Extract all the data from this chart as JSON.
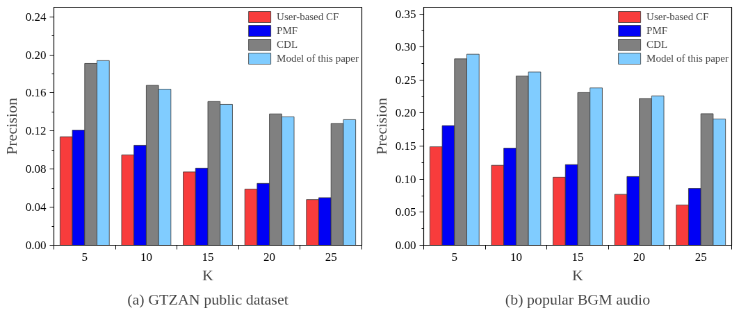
{
  "chart_data": [
    {
      "type": "bar",
      "title": "(a) GTZAN public dataset",
      "xlabel": "K",
      "ylabel": "Precision",
      "categories": [
        "5",
        "10",
        "15",
        "20",
        "25"
      ],
      "series": [
        {
          "name": "User-based CF",
          "color": "#f83c3c",
          "values": [
            0.114,
            0.095,
            0.077,
            0.059,
            0.048
          ]
        },
        {
          "name": "PMF",
          "color": "#0000f5",
          "values": [
            0.121,
            0.105,
            0.081,
            0.065,
            0.05
          ]
        },
        {
          "name": "CDL",
          "color": "#808080",
          "values": [
            0.191,
            0.168,
            0.151,
            0.138,
            0.128
          ]
        },
        {
          "name": "Model of this paper",
          "color": "#80ccff",
          "values": [
            0.194,
            0.164,
            0.148,
            0.135,
            0.132
          ]
        }
      ],
      "ylim": [
        0,
        0.25
      ],
      "yticks": [
        {
          "value": 0,
          "label": "0.00"
        },
        {
          "value": 0.04,
          "label": "0.04"
        },
        {
          "value": 0.08,
          "label": "0.08"
        },
        {
          "value": 0.12,
          "label": "0.12"
        },
        {
          "value": 0.16,
          "label": "0.16"
        },
        {
          "value": 0.2,
          "label": "0.20"
        },
        {
          "value": 0.24,
          "label": "0.24"
        }
      ],
      "legend": "top right",
      "grid": false
    },
    {
      "type": "bar",
      "title": "(b) popular BGM audio",
      "xlabel": "K",
      "ylabel": "Precision",
      "categories": [
        "5",
        "10",
        "15",
        "20",
        "25"
      ],
      "series": [
        {
          "name": "User-based CF",
          "color": "#f83c3c",
          "values": [
            0.149,
            0.121,
            0.103,
            0.077,
            0.061
          ]
        },
        {
          "name": "PMF",
          "color": "#0000f5",
          "values": [
            0.181,
            0.147,
            0.122,
            0.104,
            0.086
          ]
        },
        {
          "name": "CDL",
          "color": "#808080",
          "values": [
            0.282,
            0.256,
            0.231,
            0.222,
            0.199
          ]
        },
        {
          "name": "Model of this paper",
          "color": "#80ccff",
          "values": [
            0.289,
            0.262,
            0.238,
            0.226,
            0.191
          ]
        }
      ],
      "ylim": [
        0,
        0.36
      ],
      "yticks": [
        {
          "value": 0,
          "label": "0.00"
        },
        {
          "value": 0.05,
          "label": "0.05"
        },
        {
          "value": 0.1,
          "label": "0.10"
        },
        {
          "value": 0.15,
          "label": "0.15"
        },
        {
          "value": 0.2,
          "label": "0.20"
        },
        {
          "value": 0.25,
          "label": "0.25"
        },
        {
          "value": 0.3,
          "label": "0.30"
        },
        {
          "value": 0.35,
          "label": "0.35"
        }
      ],
      "legend": "top right",
      "grid": false
    }
  ]
}
